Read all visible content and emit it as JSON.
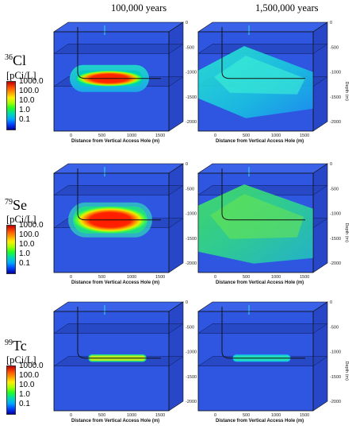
{
  "columns": [
    "100,000 years",
    "1,500,000 years"
  ],
  "rows": [
    {
      "mass": "36",
      "element": "Cl",
      "unit": "[pCi/L]"
    },
    {
      "mass": "79",
      "element": "Se",
      "unit": "[pCi/L]"
    },
    {
      "mass": "99",
      "element": "Tc",
      "unit": "[pCi/L]"
    }
  ],
  "colorbar_labels": [
    "1000.0",
    "100.0",
    "10.0",
    "1.0",
    "0.1"
  ],
  "axes": {
    "x_label": "Distance from Vertical Access Hole (m)",
    "x_ticks": [
      "0",
      "500",
      "1000",
      "1500"
    ],
    "depth_label": "Depth (m)",
    "depth_ticks": [
      "0",
      "-500",
      "-1000",
      "-1500",
      "-2000"
    ]
  },
  "colors": {
    "background_blue": "#2a4fd6",
    "front_face": "#2e56e0",
    "plane": "#233fb0"
  }
}
